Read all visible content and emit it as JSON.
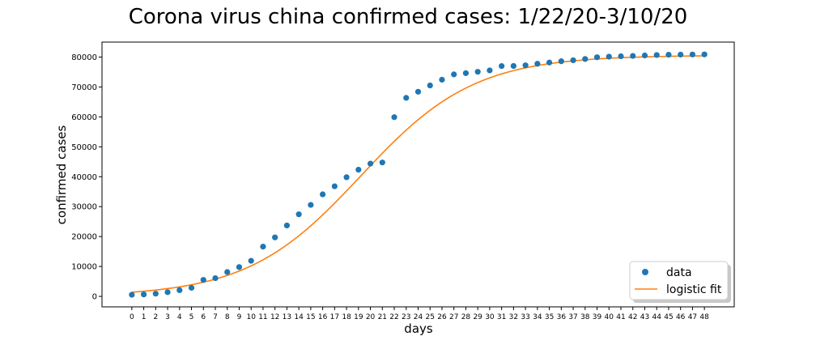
{
  "chart_data": {
    "type": "scatter",
    "title": "Corona virus china confirmed cases: 1/22/20-3/10/20",
    "xlabel": "days",
    "ylabel": "confirmed cases",
    "xlim": [
      -2.5,
      50.5
    ],
    "ylim": [
      -3500,
      85000
    ],
    "xticks": [
      0,
      1,
      2,
      3,
      4,
      5,
      6,
      7,
      8,
      9,
      10,
      11,
      12,
      13,
      14,
      15,
      16,
      17,
      18,
      19,
      20,
      21,
      22,
      23,
      24,
      25,
      26,
      27,
      28,
      29,
      30,
      31,
      32,
      33,
      34,
      35,
      36,
      37,
      38,
      39,
      40,
      41,
      42,
      43,
      44,
      45,
      46,
      47,
      48
    ],
    "yticks": [
      0,
      10000,
      20000,
      30000,
      40000,
      50000,
      60000,
      70000,
      80000
    ],
    "grid": false,
    "legend_position": "lower-right",
    "series": [
      {
        "name": "data",
        "kind": "scatter",
        "color": "#1f77b4",
        "x": [
          0,
          1,
          2,
          3,
          4,
          5,
          6,
          7,
          8,
          9,
          10,
          11,
          12,
          13,
          14,
          15,
          16,
          17,
          18,
          19,
          20,
          21,
          22,
          23,
          24,
          25,
          26,
          27,
          28,
          29,
          30,
          31,
          32,
          33,
          34,
          35,
          36,
          37,
          38,
          39,
          40,
          41,
          42,
          43,
          44,
          45,
          46,
          47,
          48
        ],
        "y": [
          548,
          643,
          920,
          1406,
          2075,
          2877,
          5509,
          6087,
          8141,
          9802,
          11891,
          16630,
          19716,
          23707,
          27440,
          30587,
          34110,
          36814,
          39829,
          42354,
          44386,
          44759,
          59895,
          66358,
          68413,
          70513,
          72434,
          74211,
          74619,
          75077,
          75550,
          77001,
          77022,
          77241,
          77754,
          78166,
          78600,
          78928,
          79356,
          79932,
          80136,
          80261,
          80386,
          80537,
          80690,
          80770,
          80823,
          80860,
          80887
        ]
      },
      {
        "name": "logistic fit",
        "kind": "line",
        "color": "#ff7f0e",
        "model": "L / (1 + exp(-k*(x - x0)))",
        "params": {
          "L": 80600,
          "k": 0.21,
          "x0": 19.2
        }
      }
    ]
  }
}
